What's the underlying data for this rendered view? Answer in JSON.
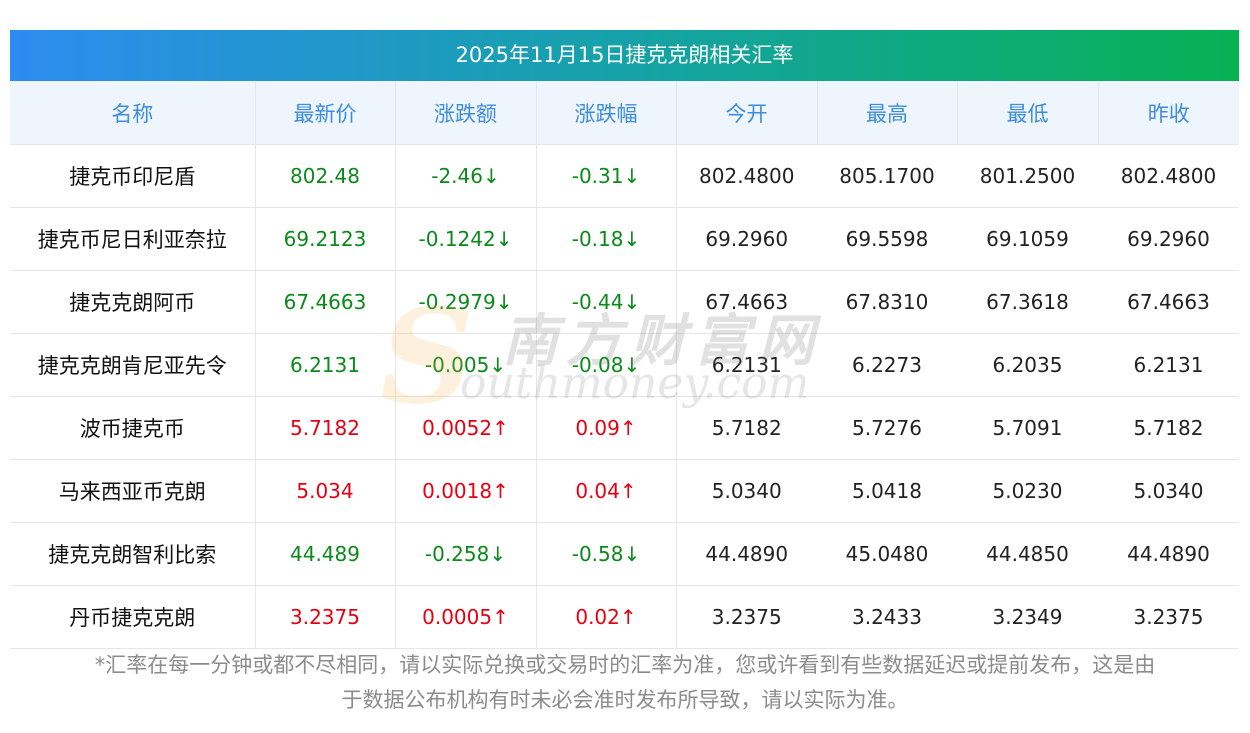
{
  "title": "2025年11月15日捷克克朗相关汇率",
  "columns": [
    "名称",
    "最新价",
    "涨跌额",
    "涨跌幅",
    "今开",
    "最高",
    "最低",
    "昨收"
  ],
  "rows": [
    {
      "name": "捷克币印尼盾",
      "latest": "802.48",
      "change": "-2.46↓",
      "pct": "-0.31↓",
      "open": "802.4800",
      "high": "805.1700",
      "low": "801.2500",
      "prev": "802.4800",
      "trend": "down"
    },
    {
      "name": "捷克币尼日利亚奈拉",
      "latest": "69.2123",
      "change": "-0.1242↓",
      "pct": "-0.18↓",
      "open": "69.2960",
      "high": "69.5598",
      "low": "69.1059",
      "prev": "69.2960",
      "trend": "down"
    },
    {
      "name": "捷克克朗阿币",
      "latest": "67.4663",
      "change": "-0.2979↓",
      "pct": "-0.44↓",
      "open": "67.4663",
      "high": "67.8310",
      "low": "67.3618",
      "prev": "67.4663",
      "trend": "down"
    },
    {
      "name": "捷克克朗肯尼亚先令",
      "latest": "6.2131",
      "change": "-0.005↓",
      "pct": "-0.08↓",
      "open": "6.2131",
      "high": "6.2273",
      "low": "6.2035",
      "prev": "6.2131",
      "trend": "down"
    },
    {
      "name": "波币捷克币",
      "latest": "5.7182",
      "change": "0.0052↑",
      "pct": "0.09↑",
      "open": "5.7182",
      "high": "5.7276",
      "low": "5.7091",
      "prev": "5.7182",
      "trend": "up"
    },
    {
      "name": "马来西亚币克朗",
      "latest": "5.034",
      "change": "0.0018↑",
      "pct": "0.04↑",
      "open": "5.0340",
      "high": "5.0418",
      "low": "5.0230",
      "prev": "5.0340",
      "trend": "up"
    },
    {
      "name": "捷克克朗智利比索",
      "latest": "44.489",
      "change": "-0.258↓",
      "pct": "-0.58↓",
      "open": "44.4890",
      "high": "45.0480",
      "low": "44.4850",
      "prev": "44.4890",
      "trend": "down"
    },
    {
      "name": "丹币捷克克朗",
      "latest": "3.2375",
      "change": "0.0005↑",
      "pct": "0.02↑",
      "open": "3.2375",
      "high": "3.2433",
      "low": "3.2349",
      "prev": "3.2375",
      "trend": "up"
    }
  ],
  "footnote_line1": "*汇率在每一分钟或都不尽相同，请以实际兑换或交易时的汇率为准，您或许看到有些数据延迟或提前发布，这是由",
  "footnote_line2": "于数据公布机构有时未必会准时发布所导致，请以实际为准。",
  "watermark": {
    "letter": "S",
    "cn": "南方财富网",
    "en": "outhmoney.com"
  },
  "colors": {
    "up": "#e60012",
    "down": "#0a8a1a",
    "header_text": "#3d8ddf",
    "title_from": "#2d8cf0",
    "title_to": "#07b153"
  }
}
